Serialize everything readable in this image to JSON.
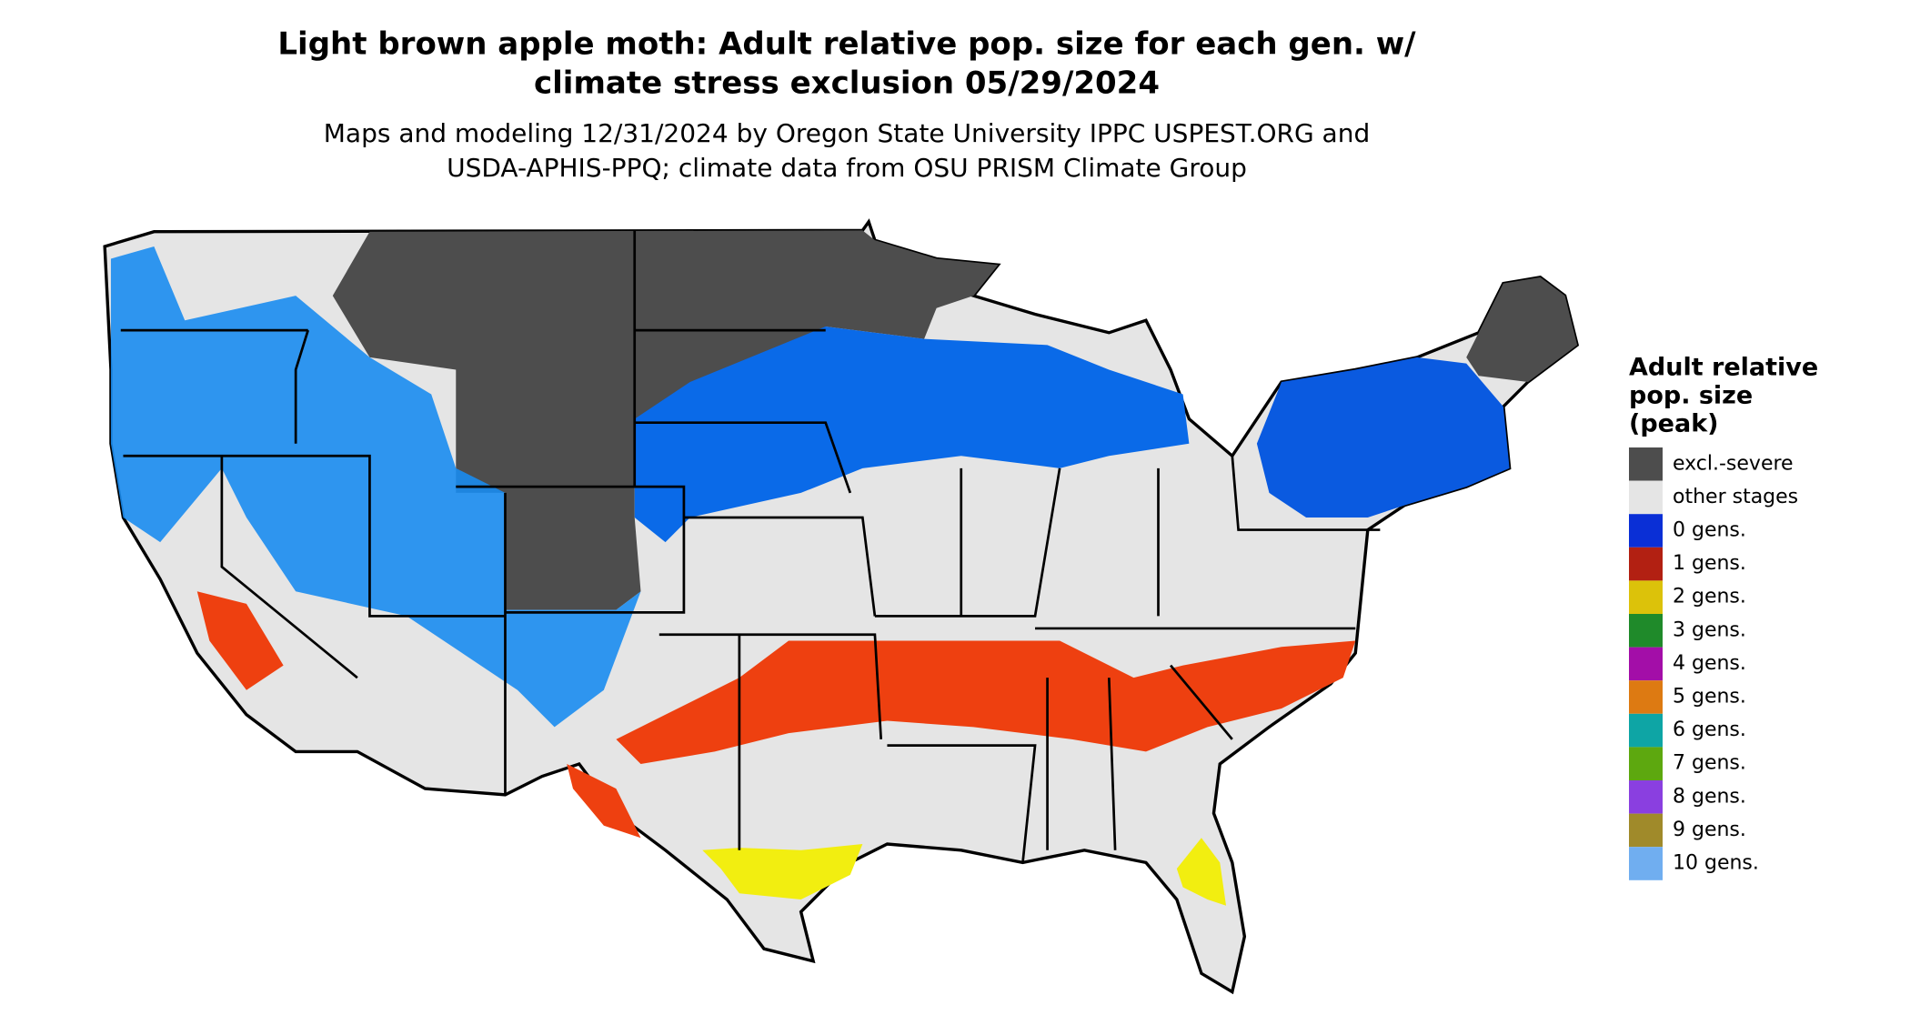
{
  "title": [
    "Light brown apple moth: Adult relative pop. size for each gen. w/",
    "climate stress exclusion 05/29/2024"
  ],
  "subtitle": [
    "Maps and modeling 12/31/2024 by Oregon State University IPPC USPEST.ORG and",
    "USDA-APHIS-PPQ; climate data from OSU PRISM Climate Group"
  ],
  "legend": {
    "title": [
      "Adult relative",
      "pop. size",
      "(peak)"
    ],
    "items": [
      {
        "label": "excl.-severe",
        "color": "#4d4d4d"
      },
      {
        "label": "other stages",
        "color": "#e5e5e5"
      },
      {
        "label": "0 gens.",
        "color": "#0a2fd6"
      },
      {
        "label": "1 gens.",
        "color": "#b22012"
      },
      {
        "label": "2 gens.",
        "color": "#dcc20a"
      },
      {
        "label": "3 gens.",
        "color": "#1f8a2a"
      },
      {
        "label": "4 gens.",
        "color": "#a30ea8"
      },
      {
        "label": "5 gens.",
        "color": "#dd7a12"
      },
      {
        "label": "6 gens.",
        "color": "#0ea5a5"
      },
      {
        "label": "7 gens.",
        "color": "#5da80f"
      },
      {
        "label": "8 gens.",
        "color": "#8a3fe0"
      },
      {
        "label": "9 gens.",
        "color": "#a08a2a"
      },
      {
        "label": "10 gens.",
        "color": "#70aef0"
      }
    ]
  }
}
